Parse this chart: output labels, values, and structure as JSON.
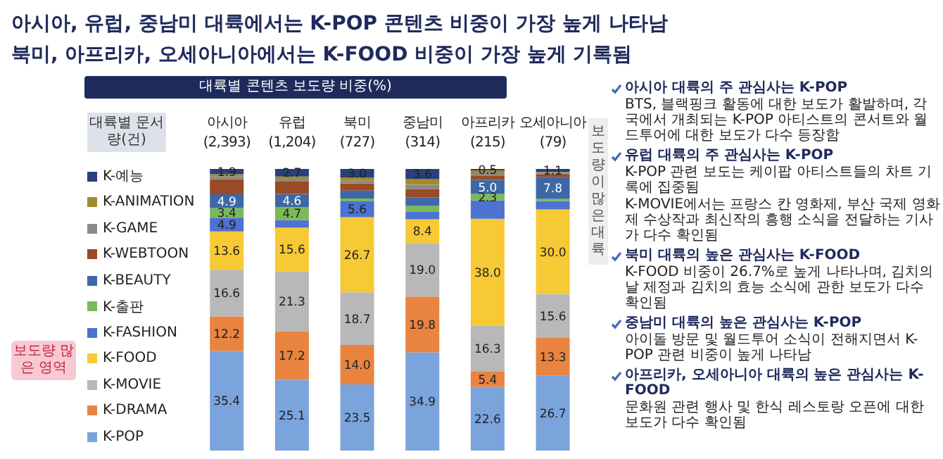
{
  "chart_data": {
    "type": "bar",
    "stacked": true,
    "title": "아시아, 유럽, 중남미 대륙에서는 K-POP 콘텐츠 비중이 가장 높게 나타남",
    "subtitle": "북미, 아프리카, 오세아니아에서는 K-FOOD 비중이 가장 높게 기록됨",
    "legend_title": "대륙별 콘텐츠 보도량 비중(%)",
    "legend": "left",
    "categories": [
      "아시아 (2,393)",
      "유럽 (1,204)",
      "북미 (727)",
      "중남미 (314)",
      "아프리카 (215)",
      "오세아니아 (79)"
    ],
    "ylim": [
      0,
      100
    ],
    "tick_labels": "x",
    "series": [
      {
        "name": "K-POP",
        "color": "#7ba3dc",
        "values": [
          35.4,
          25.1,
          23.5,
          34.9,
          22.6,
          26.7
        ],
        "value_labels": [
          "35.4",
          "25.1",
          "23.5",
          "34.9",
          "22.6",
          "26.7"
        ]
      },
      {
        "name": "K-DRAMA",
        "color": "#e8843f",
        "values": [
          12.2,
          17.2,
          14.0,
          19.8,
          5.4,
          13.3
        ],
        "value_labels": [
          "12.2",
          "17.2",
          "14.0",
          "19.8",
          "5.4",
          "13.3"
        ]
      },
      {
        "name": "K-MOVIE",
        "color": "#b8b8b8",
        "values": [
          16.6,
          21.3,
          18.7,
          19.0,
          16.3,
          15.6
        ],
        "value_labels": [
          "16.6",
          "21.3",
          "18.7",
          "19.0",
          "16.3",
          "15.6"
        ]
      },
      {
        "name": "K-FOOD",
        "color": "#f6c935",
        "values": [
          13.6,
          15.6,
          26.7,
          8.4,
          38.0,
          30.0
        ],
        "value_labels": [
          "13.6",
          "15.6",
          "26.7",
          "8.4",
          "38.0",
          "30.0"
        ]
      },
      {
        "name": "K-FASHION",
        "color": "#4d72d2",
        "values": [
          4.9,
          2.6,
          5.6,
          2.8,
          6.5,
          3.0
        ],
        "value_labels": [
          "4.9",
          null,
          "5.6",
          null,
          null,
          null
        ]
      },
      {
        "name": "K-출판",
        "color": "#7cb95a",
        "values": [
          3.4,
          4.7,
          1.0,
          2.0,
          2.3,
          0.8
        ],
        "value_labels": [
          "3.4",
          "4.7",
          null,
          null,
          "2.3",
          null
        ]
      },
      {
        "name": "K-BEAUTY",
        "color": "#3d68a6",
        "values": [
          4.9,
          4.6,
          2.8,
          3.0,
          5.0,
          7.8
        ],
        "value_labels": [
          "4.9",
          "4.6",
          null,
          null,
          "5.0",
          "7.8"
        ]
      },
      {
        "name": "K-WEBTOON",
        "color": "#9a4a24",
        "values": [
          5.3,
          4.6,
          2.5,
          3.0,
          1.4,
          1.0
        ],
        "value_labels": [
          null,
          null,
          null,
          null,
          null,
          null
        ]
      },
      {
        "name": "K-GAME",
        "color": "#8a8a8a",
        "values": [
          1.0,
          0.8,
          1.0,
          1.5,
          1.0,
          0.4
        ],
        "value_labels": [
          null,
          null,
          null,
          null,
          null,
          null
        ]
      },
      {
        "name": "K-ANIMATION",
        "color": "#a38b2c",
        "values": [
          0.8,
          0.8,
          1.2,
          2.0,
          1.0,
          0.3
        ],
        "value_labels": [
          null,
          null,
          null,
          null,
          null,
          null
        ]
      },
      {
        "name": "K-예능",
        "color": "#29407a",
        "values": [
          1.9,
          2.7,
          3.0,
          3.6,
          0.5,
          1.1
        ],
        "value_labels": [
          "1.9",
          "2.7",
          "3.0",
          "3.6",
          "0.5",
          "1.1"
        ]
      }
    ],
    "annotations": [
      "대륙별 문서량(건)",
      "보도량 많은 영역",
      "보도량이 많은 대륙",
      "아시아 대륙의 주 관심사는 K-POP",
      "BTS, 블랙핑크 활동에 대한 보도가 활발하며, 각국에서 개최되는 K-POP 아티스트의 콘서트와 월드투어에 대한 보도가 다수 등장함",
      "유럽 대륙의 주 관심사는 K-POP",
      "K-POP 관련 보도는 케이팝 아티스트들의 차트 기록에 집중됨",
      "K-MOVIE에서는 프랑스 칸 영화제, 부산 국제 영화제 수상작과 최신작의 흥행 소식을 전달하는 기사가 다수 확인됨",
      "북미 대륙의 높은 관심사는 K-FOOD",
      "K-FOOD 비중이 26.7%로 높게 나타나며, 김치의 날 제정과 김치의 효능 소식에 관한 보도가 다수 확인됨",
      "중남미 대륙의 높은 관심사는 K-POP",
      "아이돌 방문 및 월드투어 소식이 전해지면서 K-POP 관련 비중이 높게 나타남",
      "아프리카, 오세아니아 대륙의 높은 관심사는 K-FOOD",
      "문화원 관련 행사 및 한식 레스토랑 오픈에 대한 보도가 다수 확인됨"
    ]
  }
}
